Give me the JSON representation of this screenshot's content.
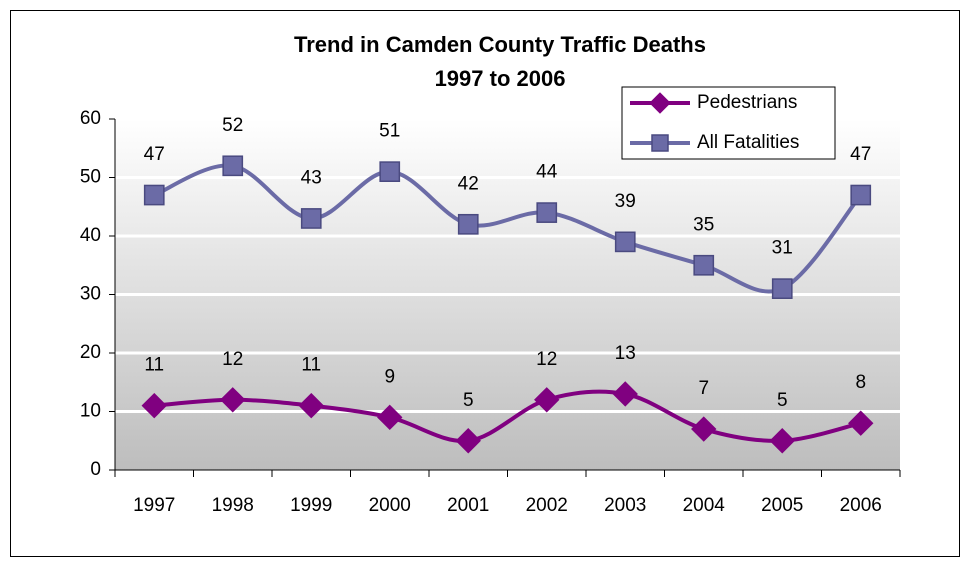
{
  "chart_data": {
    "type": "line",
    "title": "Trend in Camden County Traffic Deaths",
    "subtitle": "1997 to 2006",
    "categories": [
      "1997",
      "1998",
      "1999",
      "2000",
      "2001",
      "2002",
      "2003",
      "2004",
      "2005",
      "2006"
    ],
    "series": [
      {
        "name": "Pedestrians",
        "color": "#800080",
        "marker": "diamond",
        "values": [
          11,
          12,
          11,
          9,
          5,
          12,
          13,
          7,
          5,
          8
        ]
      },
      {
        "name": "All Fatalities",
        "color": "#6b6ba6",
        "marker": "square",
        "values": [
          47,
          52,
          43,
          51,
          42,
          44,
          39,
          35,
          31,
          47
        ]
      }
    ],
    "ylim": [
      0,
      60
    ],
    "yticks": [
      0,
      10,
      20,
      30,
      40,
      50,
      60
    ],
    "grid": true,
    "smooth": true,
    "legend": "top-right"
  }
}
